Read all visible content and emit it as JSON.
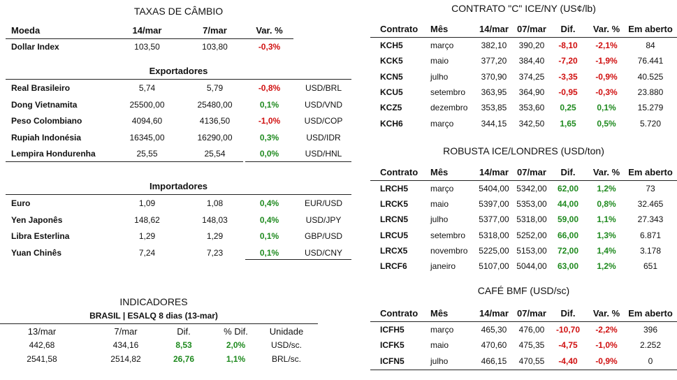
{
  "cambio": {
    "title": "TAXAS DE CÂMBIO",
    "headers": [
      "Moeda",
      "14/mar",
      "7/mar",
      "Var. %"
    ],
    "dollar_index": {
      "name": "Dollar Index",
      "a": "103,50",
      "b": "103,80",
      "var": "-0,3%",
      "sign": "neg"
    },
    "exp_title": "Exportadores",
    "exportadores": [
      {
        "name": "Real Brasileiro",
        "a": "5,74",
        "b": "5,79",
        "var": "-0,8%",
        "sign": "neg",
        "pair": "USD/BRL"
      },
      {
        "name": "Dong Vietnamita",
        "a": "25500,00",
        "b": "25480,00",
        "var": "0,1%",
        "sign": "pos",
        "pair": "USD/VND"
      },
      {
        "name": "Peso Colombiano",
        "a": "4094,60",
        "b": "4136,50",
        "var": "-1,0%",
        "sign": "neg",
        "pair": "USD/COP"
      },
      {
        "name": "Rupiah Indonésia",
        "a": "16345,00",
        "b": "16290,00",
        "var": "0,3%",
        "sign": "pos",
        "pair": "USD/IDR"
      },
      {
        "name": "Lempira Hondurenha",
        "a": "25,55",
        "b": "25,54",
        "var": "0,0%",
        "sign": "pos",
        "pair": "USD/HNL"
      }
    ],
    "imp_title": "Importadores",
    "importadores": [
      {
        "name": "Euro",
        "a": "1,09",
        "b": "1,08",
        "var": "0,4%",
        "sign": "pos",
        "pair": "EUR/USD"
      },
      {
        "name": "Yen Japonês",
        "a": "148,62",
        "b": "148,03",
        "var": "0,4%",
        "sign": "pos",
        "pair": "USD/JPY"
      },
      {
        "name": "Libra Esterlina",
        "a": "1,29",
        "b": "1,29",
        "var": "0,1%",
        "sign": "pos",
        "pair": "GBP/USD"
      },
      {
        "name": "Yuan Chinês",
        "a": "7,24",
        "b": "7,23",
        "var": "0,1%",
        "sign": "pos",
        "pair": "USD/CNY"
      }
    ]
  },
  "indicadores": {
    "title": "INDICADORES",
    "subtitle": "BRASIL | ESALQ 8 dias (13-mar)",
    "headers": [
      "13/mar",
      "7/mar",
      "Dif.",
      "% Dif.",
      "Unidade"
    ],
    "rows": [
      {
        "a": "442,68",
        "b": "434,16",
        "dif": "8,53",
        "pct": "2,0%",
        "unit": "USD/sc."
      },
      {
        "a": "2541,58",
        "b": "2514,82",
        "dif": "26,76",
        "pct": "1,1%",
        "unit": "BRL/sc."
      }
    ]
  },
  "contrato_c": {
    "title": "CONTRATO \"C\" ICE/NY (US¢/lb)",
    "headers": [
      "Contrato",
      "Mês",
      "14/mar",
      "07/mar",
      "Dif.",
      "Var. %",
      "Em aberto"
    ],
    "rows": [
      {
        "c": "KCH5",
        "m": "março",
        "a": "382,10",
        "b": "390,20",
        "d": "-8,10",
        "v": "-2,1%",
        "o": "84",
        "sign": "neg"
      },
      {
        "c": "KCK5",
        "m": "maio",
        "a": "377,20",
        "b": "384,40",
        "d": "-7,20",
        "v": "-1,9%",
        "o": "76.441",
        "sign": "neg"
      },
      {
        "c": "KCN5",
        "m": "julho",
        "a": "370,90",
        "b": "374,25",
        "d": "-3,35",
        "v": "-0,9%",
        "o": "40.525",
        "sign": "neg"
      },
      {
        "c": "KCU5",
        "m": "setembro",
        "a": "363,95",
        "b": "364,90",
        "d": "-0,95",
        "v": "-0,3%",
        "o": "23.880",
        "sign": "neg"
      },
      {
        "c": "KCZ5",
        "m": "dezembro",
        "a": "353,85",
        "b": "353,60",
        "d": "0,25",
        "v": "0,1%",
        "o": "15.279",
        "sign": "pos"
      },
      {
        "c": "KCH6",
        "m": "março",
        "a": "344,15",
        "b": "342,50",
        "d": "1,65",
        "v": "0,5%",
        "o": "5.720",
        "sign": "pos"
      }
    ]
  },
  "robusta": {
    "title": "ROBUSTA ICE/LONDRES (USD/ton)",
    "headers": [
      "Contrato",
      "Mês",
      "14/mar",
      "07/mar",
      "Dif.",
      "Var. %",
      "Em aberto"
    ],
    "rows": [
      {
        "c": "LRCH5",
        "m": "março",
        "a": "5404,00",
        "b": "5342,00",
        "d": "62,00",
        "v": "1,2%",
        "o": "73",
        "sign": "pos"
      },
      {
        "c": "LRCK5",
        "m": "maio",
        "a": "5397,00",
        "b": "5353,00",
        "d": "44,00",
        "v": "0,8%",
        "o": "32.465",
        "sign": "pos"
      },
      {
        "c": "LRCN5",
        "m": "julho",
        "a": "5377,00",
        "b": "5318,00",
        "d": "59,00",
        "v": "1,1%",
        "o": "27.343",
        "sign": "pos"
      },
      {
        "c": "LRCU5",
        "m": "setembro",
        "a": "5318,00",
        "b": "5252,00",
        "d": "66,00",
        "v": "1,3%",
        "o": "6.871",
        "sign": "pos"
      },
      {
        "c": "LRCX5",
        "m": "novembro",
        "a": "5225,00",
        "b": "5153,00",
        "d": "72,00",
        "v": "1,4%",
        "o": "3.178",
        "sign": "pos"
      },
      {
        "c": "LRCF6",
        "m": "janeiro",
        "a": "5107,00",
        "b": "5044,00",
        "d": "63,00",
        "v": "1,2%",
        "o": "651",
        "sign": "pos"
      }
    ]
  },
  "cafe_bmf": {
    "title": "CAFÉ BMF (USD/sc)",
    "headers": [
      "Contrato",
      "Mês",
      "14/mar",
      "07/mar",
      "Dif.",
      "Var. %",
      "Em aberto"
    ],
    "rows": [
      {
        "c": "ICFH5",
        "m": "março",
        "a": "465,30",
        "b": "476,00",
        "d": "-10,70",
        "v": "-2,2%",
        "o": "396",
        "sign": "neg"
      },
      {
        "c": "ICFK5",
        "m": "maio",
        "a": "470,60",
        "b": "475,35",
        "d": "-4,75",
        "v": "-1,0%",
        "o": "2.252",
        "sign": "neg"
      },
      {
        "c": "ICFN5",
        "m": "julho",
        "a": "466,15",
        "b": "470,55",
        "d": "-4,40",
        "v": "-0,9%",
        "o": "0",
        "sign": "neg"
      }
    ]
  },
  "colors": {
    "positive": "#1f8a1f",
    "negative": "#d01010"
  }
}
